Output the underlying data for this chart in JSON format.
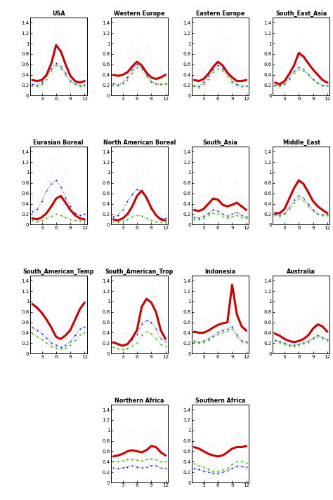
{
  "panels": [
    {
      "title": "USA",
      "red": [
        0.3,
        0.28,
        0.3,
        0.4,
        0.62,
        0.97,
        0.85,
        0.6,
        0.38,
        0.28,
        0.25,
        0.28
      ],
      "green": [
        0.2,
        0.18,
        0.22,
        0.32,
        0.48,
        0.58,
        0.52,
        0.4,
        0.27,
        0.22,
        0.18,
        0.2
      ],
      "blue": [
        0.22,
        0.2,
        0.26,
        0.38,
        0.52,
        0.62,
        0.56,
        0.44,
        0.29,
        0.23,
        0.2,
        0.21
      ],
      "gray_lo": [
        0.05,
        0.05,
        0.08,
        0.15,
        0.3,
        0.55,
        0.5,
        0.35,
        0.15,
        0.08,
        0.05,
        0.05
      ],
      "gray_hi": [
        0.55,
        0.6,
        0.7,
        0.9,
        1.2,
        1.45,
        1.4,
        1.2,
        0.85,
        0.6,
        0.45,
        0.45
      ]
    },
    {
      "title": "Western Europe",
      "red": [
        0.4,
        0.38,
        0.4,
        0.45,
        0.56,
        0.65,
        0.58,
        0.44,
        0.35,
        0.32,
        0.35,
        0.4
      ],
      "green": [
        0.22,
        0.2,
        0.23,
        0.3,
        0.44,
        0.54,
        0.5,
        0.37,
        0.26,
        0.22,
        0.22,
        0.22
      ],
      "blue": [
        0.24,
        0.21,
        0.25,
        0.35,
        0.5,
        0.6,
        0.54,
        0.4,
        0.28,
        0.23,
        0.22,
        0.23
      ],
      "gray_lo": [
        0.1,
        0.1,
        0.12,
        0.18,
        0.3,
        0.5,
        0.45,
        0.3,
        0.15,
        0.1,
        0.08,
        0.08
      ],
      "gray_hi": [
        0.7,
        0.75,
        0.8,
        0.9,
        1.1,
        1.25,
        1.2,
        1.0,
        0.8,
        0.65,
        0.6,
        0.6
      ]
    },
    {
      "title": "Eastern Europe",
      "red": [
        0.3,
        0.28,
        0.32,
        0.42,
        0.55,
        0.65,
        0.58,
        0.44,
        0.35,
        0.28,
        0.28,
        0.3
      ],
      "green": [
        0.18,
        0.16,
        0.22,
        0.32,
        0.45,
        0.52,
        0.48,
        0.37,
        0.26,
        0.2,
        0.18,
        0.18
      ],
      "blue": [
        0.2,
        0.18,
        0.26,
        0.38,
        0.5,
        0.58,
        0.52,
        0.42,
        0.28,
        0.22,
        0.18,
        0.19
      ],
      "gray_lo": [
        0.05,
        0.05,
        0.08,
        0.15,
        0.28,
        0.45,
        0.42,
        0.28,
        0.12,
        0.08,
        0.05,
        0.05
      ],
      "gray_hi": [
        0.6,
        0.65,
        0.75,
        0.9,
        1.1,
        1.35,
        1.3,
        1.1,
        0.85,
        0.65,
        0.55,
        0.55
      ]
    },
    {
      "title": "South_East_Asia",
      "red": [
        0.25,
        0.22,
        0.28,
        0.42,
        0.58,
        0.82,
        0.75,
        0.62,
        0.5,
        0.4,
        0.3,
        0.25
      ],
      "green": [
        0.2,
        0.18,
        0.22,
        0.32,
        0.44,
        0.5,
        0.47,
        0.39,
        0.3,
        0.24,
        0.2,
        0.2
      ],
      "blue": [
        0.21,
        0.19,
        0.23,
        0.34,
        0.48,
        0.55,
        0.51,
        0.41,
        0.31,
        0.25,
        0.2,
        0.2
      ],
      "gray_lo": [
        0.05,
        0.05,
        0.08,
        0.15,
        0.28,
        0.45,
        0.4,
        0.28,
        0.15,
        0.08,
        0.05,
        0.05
      ],
      "gray_hi": [
        0.55,
        0.6,
        0.7,
        0.85,
        1.05,
        1.2,
        1.15,
        1.0,
        0.8,
        0.6,
        0.5,
        0.5
      ]
    },
    {
      "title": "Eurasian Boreal",
      "red": [
        0.12,
        0.1,
        0.14,
        0.22,
        0.35,
        0.5,
        0.55,
        0.42,
        0.28,
        0.18,
        0.12,
        0.1
      ],
      "green": [
        0.08,
        0.06,
        0.08,
        0.12,
        0.16,
        0.2,
        0.18,
        0.14,
        0.1,
        0.08,
        0.07,
        0.07
      ],
      "blue": [
        0.25,
        0.3,
        0.45,
        0.65,
        0.78,
        0.85,
        0.72,
        0.52,
        0.35,
        0.22,
        0.18,
        0.2
      ],
      "gray_lo": [
        0.05,
        0.05,
        0.08,
        0.18,
        0.35,
        0.55,
        0.6,
        0.45,
        0.25,
        0.12,
        0.08,
        0.05
      ],
      "gray_hi": [
        0.55,
        0.65,
        0.85,
        1.1,
        1.3,
        1.4,
        1.35,
        1.15,
        0.85,
        0.6,
        0.45,
        0.4
      ]
    },
    {
      "title": "North American Boreal",
      "red": [
        0.1,
        0.08,
        0.12,
        0.2,
        0.35,
        0.55,
        0.65,
        0.52,
        0.32,
        0.18,
        0.1,
        0.08
      ],
      "green": [
        0.06,
        0.05,
        0.07,
        0.1,
        0.15,
        0.18,
        0.17,
        0.12,
        0.08,
        0.06,
        0.05,
        0.05
      ],
      "blue": [
        0.15,
        0.18,
        0.28,
        0.45,
        0.58,
        0.68,
        0.63,
        0.48,
        0.3,
        0.18,
        0.12,
        0.12
      ],
      "gray_lo": [
        0.05,
        0.05,
        0.08,
        0.18,
        0.35,
        0.55,
        0.65,
        0.5,
        0.25,
        0.1,
        0.05,
        0.05
      ],
      "gray_hi": [
        0.45,
        0.52,
        0.7,
        0.95,
        1.15,
        1.35,
        1.4,
        1.2,
        0.85,
        0.58,
        0.4,
        0.35
      ]
    },
    {
      "title": "South_Asia",
      "red": [
        0.28,
        0.26,
        0.3,
        0.4,
        0.5,
        0.48,
        0.38,
        0.35,
        0.38,
        0.42,
        0.35,
        0.28
      ],
      "green": [
        0.1,
        0.1,
        0.12,
        0.18,
        0.22,
        0.2,
        0.15,
        0.13,
        0.15,
        0.18,
        0.14,
        0.12
      ],
      "blue": [
        0.14,
        0.13,
        0.16,
        0.22,
        0.28,
        0.26,
        0.2,
        0.17,
        0.2,
        0.23,
        0.18,
        0.15
      ],
      "gray_lo": [
        0.05,
        0.05,
        0.08,
        0.15,
        0.22,
        0.18,
        0.12,
        0.1,
        0.12,
        0.15,
        0.1,
        0.05
      ],
      "gray_hi": [
        0.45,
        0.52,
        0.65,
        0.85,
        1.0,
        0.9,
        0.7,
        0.6,
        0.7,
        0.85,
        0.65,
        0.48
      ]
    },
    {
      "title": "Middle_East",
      "red": [
        0.22,
        0.22,
        0.3,
        0.5,
        0.7,
        0.85,
        0.78,
        0.62,
        0.45,
        0.35,
        0.28,
        0.22
      ],
      "green": [
        0.18,
        0.16,
        0.2,
        0.3,
        0.42,
        0.5,
        0.46,
        0.36,
        0.26,
        0.2,
        0.18,
        0.18
      ],
      "blue": [
        0.2,
        0.18,
        0.22,
        0.33,
        0.47,
        0.56,
        0.51,
        0.39,
        0.28,
        0.21,
        0.19,
        0.19
      ],
      "gray_lo": [
        0.05,
        0.05,
        0.08,
        0.15,
        0.28,
        0.4,
        0.35,
        0.25,
        0.12,
        0.08,
        0.05,
        0.05
      ],
      "gray_hi": [
        0.5,
        0.55,
        0.68,
        0.88,
        1.08,
        1.2,
        1.15,
        0.95,
        0.75,
        0.58,
        0.5,
        0.48
      ]
    },
    {
      "title": "South_American_Temp",
      "red": [
        0.95,
        0.88,
        0.78,
        0.65,
        0.5,
        0.32,
        0.28,
        0.35,
        0.45,
        0.65,
        0.85,
        0.98
      ],
      "green": [
        0.38,
        0.33,
        0.27,
        0.21,
        0.14,
        0.11,
        0.09,
        0.11,
        0.17,
        0.26,
        0.36,
        0.4
      ],
      "blue": [
        0.5,
        0.45,
        0.38,
        0.3,
        0.2,
        0.16,
        0.13,
        0.16,
        0.23,
        0.35,
        0.47,
        0.52
      ],
      "gray_lo": [
        0.35,
        0.28,
        0.22,
        0.15,
        0.08,
        0.05,
        0.05,
        0.08,
        0.12,
        0.22,
        0.35,
        0.42
      ],
      "gray_hi": [
        1.35,
        1.25,
        1.1,
        0.9,
        0.75,
        0.55,
        0.48,
        0.58,
        0.72,
        0.95,
        1.2,
        1.38
      ]
    },
    {
      "title": "South_American_Trop",
      "red": [
        0.22,
        0.18,
        0.15,
        0.18,
        0.3,
        0.45,
        0.9,
        1.05,
        0.98,
        0.8,
        0.45,
        0.28
      ],
      "green": [
        0.12,
        0.1,
        0.08,
        0.1,
        0.15,
        0.2,
        0.35,
        0.42,
        0.38,
        0.28,
        0.18,
        0.14
      ],
      "blue": [
        0.22,
        0.19,
        0.16,
        0.19,
        0.27,
        0.37,
        0.57,
        0.64,
        0.6,
        0.47,
        0.29,
        0.23
      ],
      "gray_lo": [
        0.05,
        0.04,
        0.04,
        0.05,
        0.08,
        0.15,
        0.35,
        0.45,
        0.4,
        0.28,
        0.12,
        0.07
      ],
      "gray_hi": [
        0.52,
        0.45,
        0.4,
        0.45,
        0.62,
        0.82,
        1.25,
        1.4,
        1.32,
        1.1,
        0.72,
        0.55
      ]
    },
    {
      "title": "Indonesia",
      "red": [
        0.42,
        0.4,
        0.4,
        0.44,
        0.5,
        0.55,
        0.58,
        0.6,
        1.32,
        0.75,
        0.52,
        0.44
      ],
      "green": [
        0.22,
        0.2,
        0.22,
        0.26,
        0.32,
        0.36,
        0.4,
        0.43,
        0.48,
        0.33,
        0.23,
        0.21
      ],
      "blue": [
        0.24,
        0.22,
        0.24,
        0.29,
        0.34,
        0.4,
        0.44,
        0.47,
        0.52,
        0.36,
        0.25,
        0.23
      ],
      "gray_lo": [
        0.08,
        0.08,
        0.08,
        0.12,
        0.15,
        0.2,
        0.22,
        0.25,
        0.38,
        0.22,
        0.12,
        0.08
      ],
      "gray_hi": [
        0.65,
        0.68,
        0.7,
        0.75,
        0.82,
        0.88,
        0.92,
        0.95,
        1.38,
        1.05,
        0.72,
        0.6
      ]
    },
    {
      "title": "Australia",
      "red": [
        0.38,
        0.34,
        0.28,
        0.24,
        0.22,
        0.24,
        0.28,
        0.35,
        0.48,
        0.56,
        0.52,
        0.42
      ],
      "green": [
        0.24,
        0.21,
        0.18,
        0.15,
        0.14,
        0.16,
        0.19,
        0.22,
        0.28,
        0.33,
        0.29,
        0.25
      ],
      "blue": [
        0.26,
        0.23,
        0.2,
        0.17,
        0.16,
        0.18,
        0.21,
        0.24,
        0.3,
        0.35,
        0.31,
        0.27
      ],
      "gray_lo": [
        0.08,
        0.07,
        0.06,
        0.05,
        0.05,
        0.06,
        0.08,
        0.1,
        0.15,
        0.18,
        0.15,
        0.1
      ],
      "gray_hi": [
        0.68,
        0.65,
        0.6,
        0.55,
        0.55,
        0.6,
        0.65,
        0.72,
        0.88,
        0.98,
        0.9,
        0.75
      ]
    },
    {
      "title": "Northern Africa",
      "red": [
        0.5,
        0.52,
        0.55,
        0.6,
        0.62,
        0.6,
        0.58,
        0.62,
        0.7,
        0.68,
        0.58,
        0.52
      ],
      "green": [
        0.4,
        0.4,
        0.42,
        0.44,
        0.45,
        0.43,
        0.42,
        0.44,
        0.46,
        0.44,
        0.4,
        0.4
      ],
      "blue": [
        0.28,
        0.27,
        0.28,
        0.3,
        0.32,
        0.3,
        0.28,
        0.3,
        0.33,
        0.32,
        0.28,
        0.27
      ],
      "gray_lo": [
        0.15,
        0.15,
        0.18,
        0.22,
        0.25,
        0.22,
        0.2,
        0.22,
        0.28,
        0.25,
        0.2,
        0.17
      ],
      "gray_hi": [
        0.95,
        0.98,
        1.0,
        1.05,
        1.05,
        1.0,
        0.95,
        1.0,
        1.08,
        1.05,
        0.95,
        0.9
      ]
    },
    {
      "title": "Southern Africa",
      "red": [
        0.68,
        0.65,
        0.6,
        0.55,
        0.52,
        0.5,
        0.52,
        0.58,
        0.65,
        0.68,
        0.68,
        0.7
      ],
      "green": [
        0.36,
        0.33,
        0.29,
        0.25,
        0.22,
        0.22,
        0.24,
        0.28,
        0.35,
        0.4,
        0.4,
        0.38
      ],
      "blue": [
        0.27,
        0.25,
        0.22,
        0.2,
        0.18,
        0.18,
        0.2,
        0.23,
        0.27,
        0.31,
        0.31,
        0.29
      ],
      "gray_lo": [
        0.2,
        0.18,
        0.15,
        0.12,
        0.1,
        0.1,
        0.12,
        0.15,
        0.2,
        0.25,
        0.25,
        0.22
      ],
      "gray_hi": [
        0.95,
        0.9,
        0.82,
        0.75,
        0.7,
        0.72,
        0.78,
        0.85,
        0.92,
        0.98,
        0.98,
        0.95
      ]
    }
  ],
  "months": [
    1,
    2,
    3,
    4,
    5,
    6,
    7,
    8,
    9,
    10,
    11,
    12
  ],
  "xticks": [
    3,
    6,
    9,
    12
  ],
  "yticks": [
    0,
    0.2,
    0.4,
    0.6,
    0.8,
    1.0,
    1.2,
    1.4
  ],
  "ylim": [
    0,
    1.5
  ],
  "red_color": "#cc0000",
  "green_color": "#33bb00",
  "blue_color": "#0000cc",
  "gray_color": "#999999",
  "bg_color": "#ffffff"
}
